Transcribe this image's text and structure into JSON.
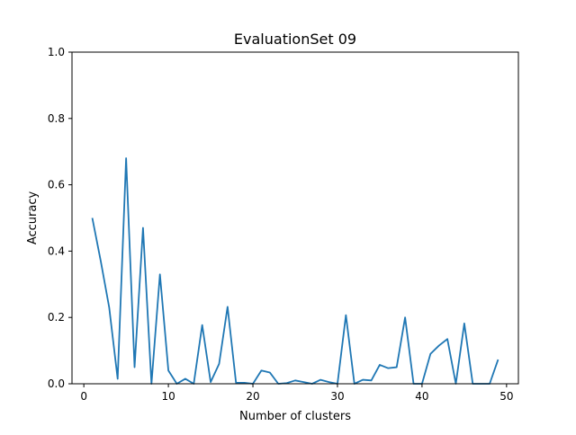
{
  "chart_data": {
    "type": "line",
    "title": "EvaluationSet 09",
    "xlabel": "Number of clusters",
    "ylabel": "Accuracy",
    "xlim": [
      -1.4,
      51.4
    ],
    "ylim": [
      0.0,
      1.0
    ],
    "x_ticks": [
      0,
      10,
      20,
      30,
      40,
      50
    ],
    "y_ticks": [
      0.0,
      0.2,
      0.4,
      0.6,
      0.8,
      1.0
    ],
    "x_tick_labels": [
      "0",
      "10",
      "20",
      "30",
      "40",
      "50"
    ],
    "y_tick_labels": [
      "0.0",
      "0.2",
      "0.4",
      "0.6",
      "0.8",
      "1.0"
    ],
    "grid": false,
    "series": [
      {
        "color": "#1f77b4",
        "x": [
          1,
          2,
          3,
          4,
          5,
          6,
          7,
          8,
          9,
          10,
          11,
          12,
          13,
          14,
          15,
          16,
          17,
          18,
          19,
          20,
          21,
          22,
          23,
          24,
          25,
          26,
          27,
          28,
          29,
          30,
          31,
          32,
          33,
          34,
          35,
          36,
          37,
          38,
          39,
          40,
          41,
          42,
          43,
          44,
          45,
          46,
          47,
          48,
          49
        ],
        "y": [
          0.5,
          0.37,
          0.23,
          0.015,
          0.68,
          0.05,
          0.47,
          0.0,
          0.33,
          0.04,
          0.0,
          0.015,
          0.0,
          0.177,
          0.005,
          0.06,
          0.232,
          0.003,
          0.003,
          0.0,
          0.04,
          0.034,
          0.0,
          0.002,
          0.01,
          0.005,
          0.0,
          0.012,
          0.005,
          0.0,
          0.207,
          0.0,
          0.012,
          0.01,
          0.057,
          0.047,
          0.05,
          0.2,
          0.0,
          0.0,
          0.09,
          0.115,
          0.135,
          0.0,
          0.182,
          0.0,
          0.0,
          0.0,
          0.073
        ]
      }
    ]
  }
}
